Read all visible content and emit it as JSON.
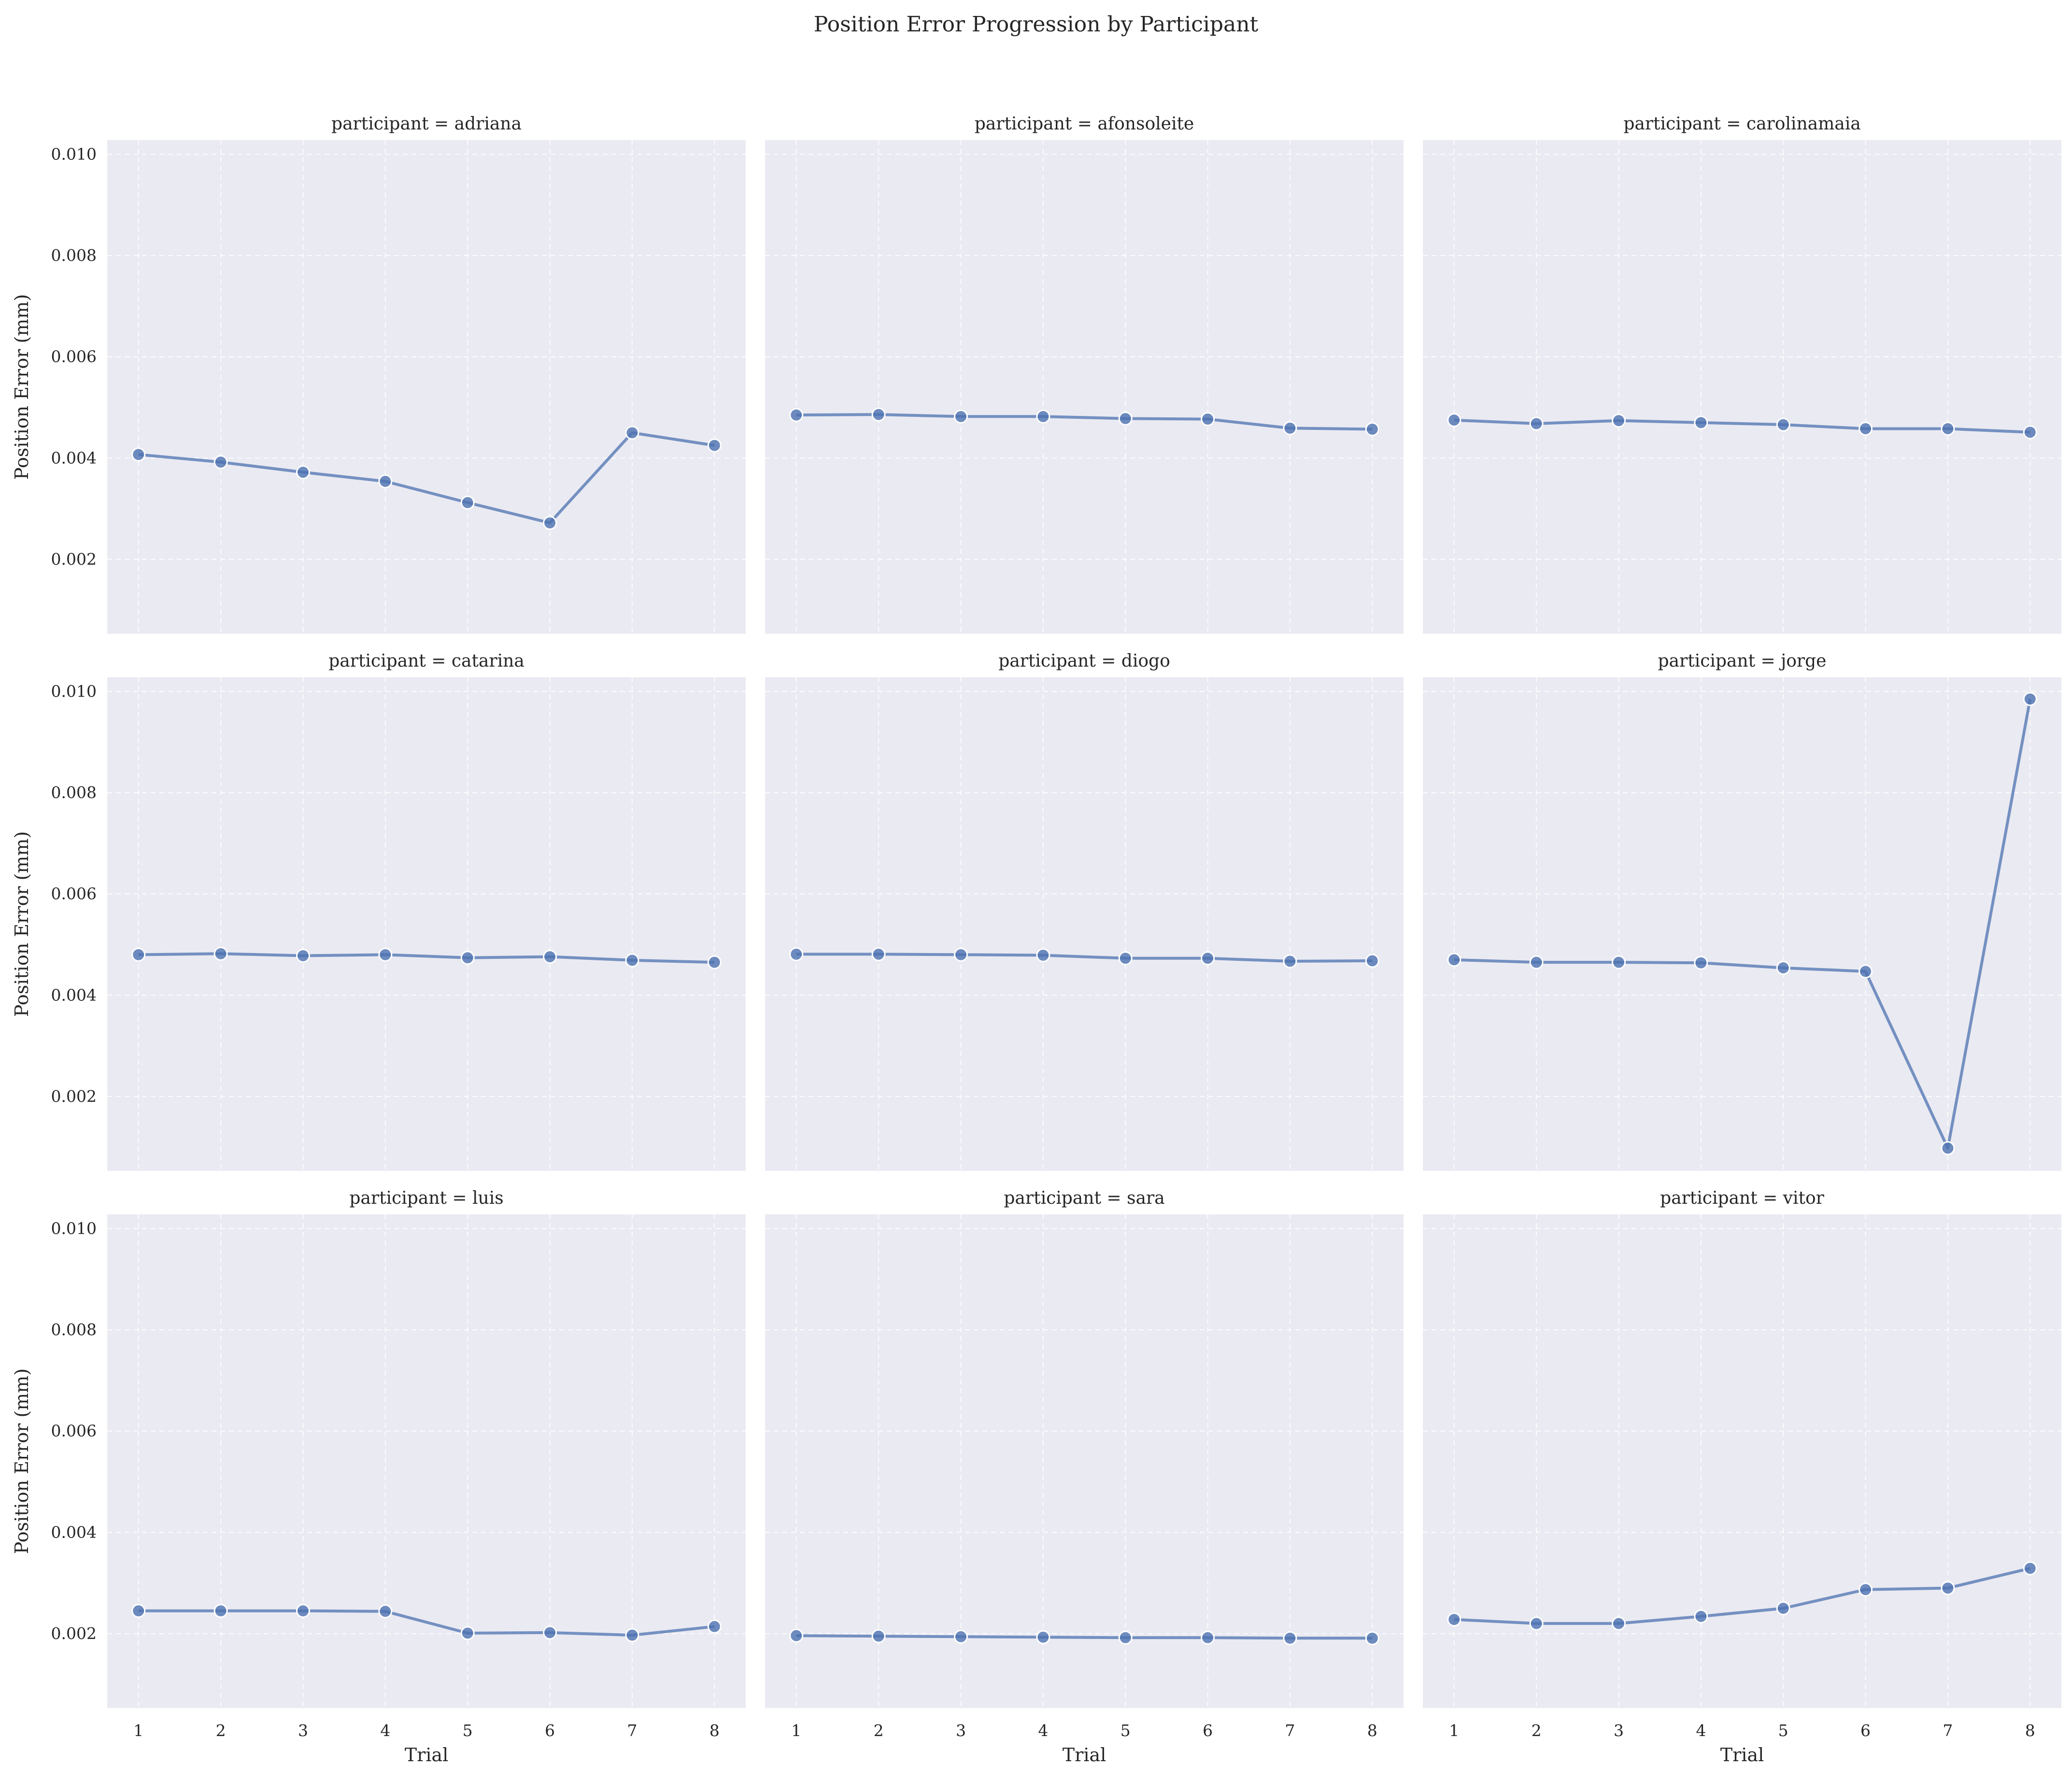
{
  "chart_data": {
    "type": "line",
    "title": "Position Error Progression by Participant",
    "xlabel": "Trial",
    "ylabel": "Position Error (mm)",
    "x": [
      1,
      2,
      3,
      4,
      5,
      6,
      7,
      8
    ],
    "xticks": [
      "1",
      "2",
      "3",
      "4",
      "5",
      "6",
      "7",
      "8"
    ],
    "yticks": [
      "0.002",
      "0.004",
      "0.006",
      "0.008",
      "0.010"
    ],
    "ytick_values": [
      0.002,
      0.004,
      0.006,
      0.008,
      0.01
    ],
    "ylim": [
      0.00053,
      0.01028
    ],
    "xlim": [
      0.62,
      8.38
    ],
    "grid": true,
    "background": "#eaeaf2",
    "line_color": "#4c72b0",
    "facets": [
      {
        "title": "participant = adriana",
        "values": [
          0.00407,
          0.00392,
          0.00372,
          0.00354,
          0.00312,
          0.00272,
          0.0045,
          0.00425
        ]
      },
      {
        "title": "participant = afonsoleite",
        "values": [
          0.00485,
          0.00486,
          0.00482,
          0.00482,
          0.00478,
          0.00477,
          0.00459,
          0.00457
        ]
      },
      {
        "title": "participant = carolinamaia",
        "values": [
          0.00475,
          0.00468,
          0.00474,
          0.0047,
          0.00466,
          0.00458,
          0.00458,
          0.00451
        ]
      },
      {
        "title": "participant = catarina",
        "values": [
          0.0048,
          0.00482,
          0.00478,
          0.0048,
          0.00474,
          0.00476,
          0.00469,
          0.00465
        ]
      },
      {
        "title": "participant = diogo",
        "values": [
          0.00481,
          0.00481,
          0.0048,
          0.00479,
          0.00473,
          0.00473,
          0.00467,
          0.00468
        ]
      },
      {
        "title": "participant = jorge",
        "values": [
          0.0047,
          0.00465,
          0.00465,
          0.00464,
          0.00454,
          0.00447,
          0.00098,
          0.00985
        ]
      },
      {
        "title": "participant = luis",
        "values": [
          0.00245,
          0.00245,
          0.00245,
          0.00244,
          0.00201,
          0.00202,
          0.00197,
          0.00214
        ]
      },
      {
        "title": "participant = sara",
        "values": [
          0.00196,
          0.00195,
          0.00194,
          0.00193,
          0.00192,
          0.00192,
          0.00191,
          0.00191
        ]
      },
      {
        "title": "participant = vitor",
        "values": [
          0.00228,
          0.0022,
          0.0022,
          0.00234,
          0.0025,
          0.00287,
          0.0029,
          0.00329
        ]
      }
    ]
  }
}
